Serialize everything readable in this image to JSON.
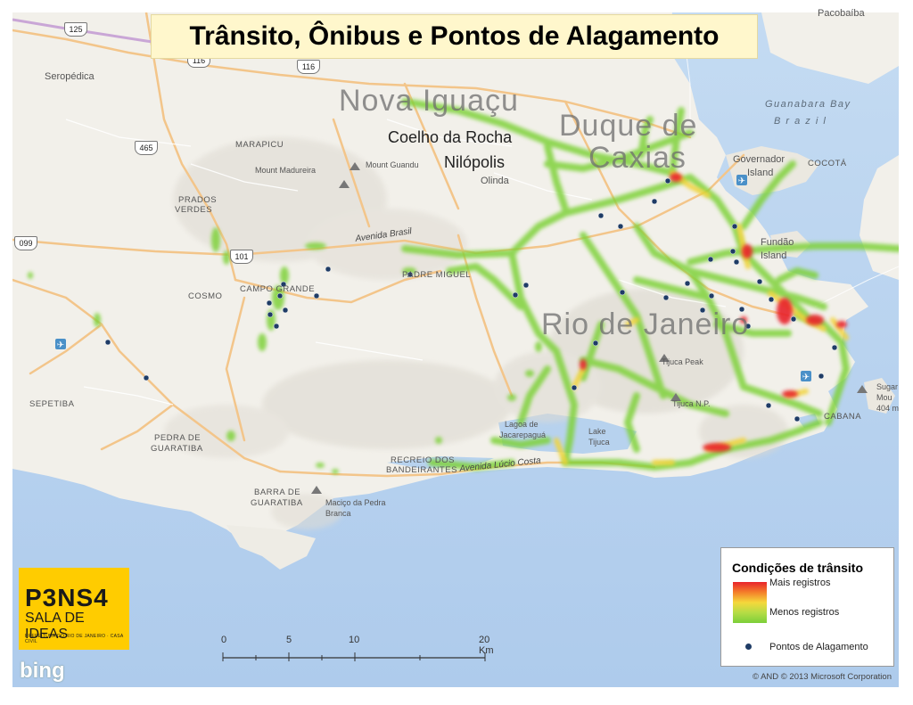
{
  "title": "Trânsito, Ônibus e Pontos de Alagamento",
  "places_large": [
    "Nova Iguaçu",
    "Duque de Caxias",
    "Rio de Janeiro"
  ],
  "places_medium": [
    "Coelho da Rocha",
    "Nilópolis"
  ],
  "places_small": {
    "olinda": "Olinda",
    "seropedica": "Seropédica",
    "marapicu": "MARAPICU",
    "mount_madureira": "Mount Madureira",
    "mount_guandu": "Mount Guandu",
    "prados_verdes_1": "PRADOS",
    "prados_verdes_2": "VERDES",
    "cosmo": "COSMO",
    "campo_grande": "CAMPO GRANDE",
    "padre_miguel": "PADRE MIGUEL",
    "sepetiba": "SEPETIBA",
    "pedra_1": "PEDRA DE",
    "pedra_2": "GUARATIBA",
    "barra_1": "BARRA DE",
    "barra_2": "GUARATIBA",
    "macico_1": "Maciço da Pedra",
    "macico_2": "Branca",
    "recreio_1": "RECREIO DOS",
    "recreio_2": "BANDEIRANTES",
    "governador_1": "Governador",
    "governador_2": "Island",
    "cocota": "COCOTÁ",
    "fundao_1": "Fundão",
    "fundao_2": "Island",
    "pacobaiba": "Pacobaíba",
    "tijuca_peak": "Tijuca Peak",
    "tijuca_np": "Tijuca N.P.",
    "lagoa": "Lagoa de",
    "jacarepagua": "Jacarepaguá",
    "lake_1": "Lake",
    "lake_2": "Tijuca",
    "sugar_1": "Sugar",
    "sugar_2": "Mou",
    "sugar_3": "404 m",
    "copacabana": "CABANA",
    "guanabara_bay": "Guanabara Bay",
    "brazil_sea": "B r a z i l"
  },
  "roads": {
    "avenida_brasil": "Avenida Brasil",
    "avenida_lucio_costa": "Avenida Lúcio Costa"
  },
  "shields": [
    "125",
    "116",
    "116",
    "465",
    "101",
    "099"
  ],
  "legend": {
    "title": "Condições de trânsito",
    "most": "Mais registros",
    "least": "Menos registros",
    "flood": "Pontos de Alagamento"
  },
  "scale": {
    "labels": [
      "0",
      "5",
      "10",
      "20 Km"
    ]
  },
  "logo": {
    "main": "P3NS4",
    "sub": "SALA DE IDEAS",
    "fine": "PREFEITURA DO RIO DE JANEIRO · CASA CIVIL"
  },
  "bing": "bing",
  "copyright": "© AND © 2013 Microsoft Corporation",
  "colors": {
    "sea": "#b9d3ef",
    "land": "#f3f1ec",
    "heat_low": "#7ccf3a",
    "heat_high": "#e8242b",
    "flood_point": "#1f3c66",
    "title_bg": "#fff7cc"
  }
}
